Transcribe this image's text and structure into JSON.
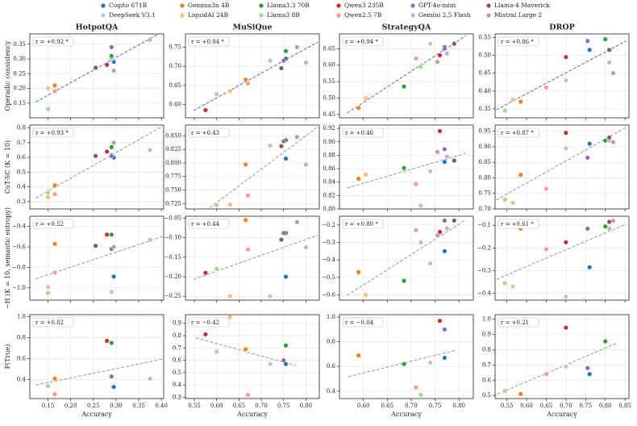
{
  "models": [
    {
      "name": "Cogito 671B",
      "color": "#1f77b4"
    },
    {
      "name": "DeepSeek V3.1",
      "color": "#aec7e8"
    },
    {
      "name": "Gemma3n 4B",
      "color": "#ff7f0e"
    },
    {
      "name": "LiquidAI 24B",
      "color": "#ffbb78"
    },
    {
      "name": "Llama3.3 70B",
      "color": "#2ca02c"
    },
    {
      "name": "Llama3 8B",
      "color": "#98df8a"
    },
    {
      "name": "Qwen3 235B",
      "color": "#d62728"
    },
    {
      "name": "Qwen2.5 7B",
      "color": "#ff9896"
    },
    {
      "name": "GPT-4o-mini",
      "color": "#9467bd"
    },
    {
      "name": "Gemini 2.5 Flash",
      "color": "#c5b0d5"
    },
    {
      "name": "Llama-4 Maverick",
      "color": "#8c564b"
    },
    {
      "name": "Mistral Large 2",
      "color": "#c49c94"
    }
  ],
  "chart_data": [
    {
      "type": "scatter",
      "title": "HotpotQA",
      "ylabel": "Operadic consistency",
      "annotation": "r = +0.92 *",
      "fit_color": "#4c72b0",
      "x": [
        0.295,
        0.29,
        0.165,
        0.15,
        0.29,
        0.15,
        0.28,
        0.165,
        0.29,
        0.375,
        0.255,
        0.295
      ],
      "y": [
        0.29,
        0.3,
        0.21,
        0.2,
        0.31,
        0.13,
        0.28,
        0.19,
        0.34,
        0.365,
        0.27,
        0.26
      ],
      "xlim": [
        0.11,
        0.405
      ],
      "xticks": [
        0.15,
        {
          "value": 0.2,
          "label": "0.20"
        },
        0.25,
        {
          "value": 0.3,
          "label": "0.30"
        },
        0.35,
        {
          "value": 0.4,
          "label": "0.40"
        }
      ],
      "ylim": [
        0.1,
        0.385
      ],
      "yticks": [
        0.15,
        {
          "value": 0.2,
          "label": "0.20"
        },
        0.25,
        {
          "value": 0.3,
          "label": "0.30"
        },
        0.35
      ],
      "grid": true
    },
    {
      "type": "scatter",
      "title": "MuSiQue",
      "annotation": "r = +0.94 *",
      "fit_color": "#4c72b0",
      "x": [
        0.755,
        0.72,
        0.665,
        0.63,
        0.755,
        0.6,
        0.575,
        0.67,
        0.75,
        0.8,
        0.745,
        0.78
      ],
      "y": [
        0.72,
        0.715,
        0.665,
        0.635,
        0.74,
        0.627,
        0.585,
        0.655,
        0.715,
        0.71,
        0.695,
        0.75
      ],
      "xlim": [
        0.53,
        0.83
      ],
      "xticks": [
        0.55,
        {
          "value": 0.6,
          "label": "0.60"
        },
        0.65,
        {
          "value": 0.7,
          "label": "0.70"
        },
        0.75,
        {
          "value": 0.8,
          "label": "0.80"
        }
      ],
      "ylim": [
        0.565,
        0.785
      ],
      "yticks": [
        {
          "value": 0.6,
          "label": "0.60"
        },
        0.65,
        {
          "value": 0.7,
          "label": "0.70"
        },
        0.75
      ],
      "grid": true
    },
    {
      "type": "scatter",
      "title": "StrategyQA",
      "annotation": "r = +0.94 *",
      "fit_color": "#4c72b0",
      "x": [
        0.77,
        0.74,
        0.59,
        0.605,
        0.685,
        0.72,
        0.76,
        0.71,
        0.77,
        0.775,
        0.79,
        0.755
      ],
      "y": [
        0.655,
        0.665,
        0.47,
        0.5,
        0.535,
        0.595,
        0.63,
        0.62,
        0.65,
        0.635,
        0.665,
        0.61
      ],
      "xlim": [
        0.55,
        0.83
      ],
      "xticks": [
        {
          "value": 0.6,
          "label": "0.60"
        },
        0.65,
        {
          "value": 0.7,
          "label": "0.70"
        },
        0.75,
        {
          "value": 0.8,
          "label": "0.80"
        }
      ],
      "ylim": [
        0.44,
        0.695
      ],
      "yticks": [
        0.45,
        {
          "value": 0.5,
          "label": "0.50"
        },
        0.55,
        {
          "value": 0.6,
          "label": "0.60"
        },
        0.65
      ],
      "grid": true
    },
    {
      "type": "scatter",
      "title": "DROP",
      "annotation": "r = +0.86 *",
      "fit_color": "#4c72b0",
      "x": [
        0.76,
        0.7,
        0.585,
        0.565,
        0.8,
        0.545,
        0.7,
        0.65,
        0.755,
        0.81,
        0.81,
        0.82
      ],
      "y": [
        0.515,
        0.43,
        0.37,
        0.375,
        0.545,
        0.345,
        0.495,
        0.41,
        0.54,
        0.48,
        0.515,
        0.45
      ],
      "xlim": [
        0.52,
        0.86
      ],
      "xticks": [
        0.55,
        {
          "value": 0.6,
          "label": "0.60"
        },
        0.65,
        {
          "value": 0.7,
          "label": "0.70"
        },
        0.75,
        {
          "value": 0.8,
          "label": "0.80"
        },
        0.85
      ],
      "ylim": [
        0.325,
        0.56
      ],
      "yticks": [
        0.35,
        {
          "value": 0.4,
          "label": "0.40"
        },
        0.45,
        {
          "value": 0.5,
          "label": "0.50"
        },
        0.55
      ],
      "grid": true
    },
    {
      "type": "scatter",
      "ylabel": "CoT-SC (K = 10)",
      "annotation": "r = +0.93 *",
      "fit_color": "#999999",
      "x": [
        0.295,
        0.29,
        0.165,
        0.15,
        0.29,
        0.15,
        0.28,
        0.165,
        0.29,
        0.375,
        0.255,
        0.295
      ],
      "y": [
        0.6,
        0.62,
        0.41,
        0.33,
        0.67,
        0.36,
        0.64,
        0.35,
        0.61,
        0.65,
        0.61,
        0.7
      ],
      "xlim": [
        0.11,
        0.405
      ],
      "xticks": [
        0.15,
        {
          "value": 0.2,
          "label": "0.20"
        },
        0.25,
        {
          "value": 0.3,
          "label": "0.30"
        },
        0.35,
        {
          "value": 0.4,
          "label": "0.40"
        }
      ],
      "ylim": [
        0.25,
        0.82
      ],
      "yticks": [
        0.3,
        0.4,
        0.5,
        0.6,
        0.7,
        0.8
      ],
      "grid": true
    },
    {
      "type": "scatter",
      "annotation": "r = +0.43",
      "fit_color": "#999999",
      "x": [
        0.755,
        0.72,
        0.665,
        0.63,
        0.755,
        0.6,
        0.575,
        0.67,
        0.75,
        0.8,
        0.745,
        0.78
      ],
      "y": [
        0.808,
        0.832,
        0.797,
        0.723,
        0.842,
        0.722,
        null,
        0.74,
        0.84,
        0.797,
        0.831,
        0.848
      ],
      "xlim": [
        0.53,
        0.83
      ],
      "xticks": [
        0.55,
        {
          "value": 0.6,
          "label": "0.60"
        },
        0.65,
        {
          "value": 0.7,
          "label": "0.70"
        },
        0.75,
        {
          "value": 0.8,
          "label": "0.80"
        }
      ],
      "ylim": [
        0.715,
        0.87
      ],
      "yticks": [
        0.725,
        {
          "value": 0.75,
          "label": "0.750"
        },
        0.775,
        {
          "value": 0.8,
          "label": "0.800"
        },
        0.825,
        {
          "value": 0.85,
          "label": "0.850"
        }
      ],
      "grid": true
    },
    {
      "type": "scatter",
      "annotation": "r = +0.46",
      "fit_color": "#999999",
      "x": [
        0.77,
        0.74,
        0.59,
        0.605,
        0.685,
        0.72,
        0.76,
        0.71,
        0.77,
        0.775,
        0.79,
        0.755
      ],
      "y": [
        0.87,
        0.856,
        0.845,
        0.851,
        0.861,
        0.805,
        0.916,
        0.837,
        0.889,
        0.878,
        0.872,
        0.885
      ],
      "xlim": [
        0.55,
        0.83
      ],
      "xticks": [
        {
          "value": 0.6,
          "label": "0.60"
        },
        0.65,
        {
          "value": 0.7,
          "label": "0.70"
        },
        0.75,
        {
          "value": 0.8,
          "label": "0.80"
        }
      ],
      "ylim": [
        0.8,
        0.925
      ],
      "yticks": [
        {
          "value": 0.8,
          "label": "0.80"
        },
        0.82,
        0.84,
        0.86,
        0.88,
        {
          "value": 0.9,
          "label": "0.90"
        },
        0.92
      ],
      "grid": true
    },
    {
      "type": "scatter",
      "annotation": "r = +0.87 *",
      "fit_color": "#999999",
      "x": [
        0.76,
        0.7,
        0.585,
        0.565,
        0.8,
        0.545,
        0.7,
        0.65,
        0.755,
        0.81,
        0.81,
        0.82
      ],
      "y": [
        0.91,
        0.895,
        0.81,
        0.72,
        0.92,
        0.73,
        0.945,
        0.765,
        0.865,
        0.92,
        0.93,
        0.915
      ],
      "xlim": [
        0.52,
        0.86
      ],
      "xticks": [
        0.55,
        {
          "value": 0.6,
          "label": "0.60"
        },
        0.65,
        {
          "value": 0.7,
          "label": "0.70"
        },
        0.75,
        {
          "value": 0.8,
          "label": "0.80"
        },
        0.85
      ],
      "ylim": [
        0.7,
        0.97
      ],
      "yticks": [
        {
          "value": 0.7,
          "label": "0.70"
        },
        0.75,
        {
          "value": 0.8,
          "label": "0.80"
        },
        0.85,
        {
          "value": 0.9,
          "label": "0.90"
        },
        0.95
      ],
      "grid": true
    },
    {
      "type": "scatter",
      "ylabel": "−H (K = 10, semantic entropy)",
      "annotation": "r = +0.52",
      "fit_color": "#999999",
      "x": [
        0.295,
        0.29,
        0.165,
        0.15,
        0.29,
        0.15,
        0.28,
        0.165,
        0.29,
        0.375,
        0.255,
        0.295
      ],
      "y": [
        -0.89,
        -1.04,
        -0.57,
        -0.99,
        -0.48,
        -1.05,
        -0.48,
        -0.85,
        -0.62,
        -0.53,
        -0.59,
        -0.6
      ],
      "xlim": [
        0.11,
        0.405
      ],
      "xticks": [
        0.15,
        {
          "value": 0.2,
          "label": "0.20"
        },
        0.25,
        {
          "value": 0.3,
          "label": "0.30"
        },
        0.35,
        {
          "value": 0.4,
          "label": "0.40"
        }
      ],
      "ylim": [
        -1.12,
        -0.3
      ],
      "yticks": [
        {
          "value": -1,
          "label": "−1.0"
        },
        {
          "value": -0.8,
          "label": "−0.8"
        },
        {
          "value": -0.6,
          "label": "−0.6"
        },
        {
          "value": -0.4,
          "label": "−0.4"
        }
      ],
      "grid": true
    },
    {
      "type": "scatter",
      "annotation": "r = +0.44",
      "fit_color": "#999999",
      "x": [
        0.755,
        0.72,
        0.665,
        0.63,
        0.755,
        0.6,
        0.575,
        0.67,
        0.75,
        0.8,
        0.745,
        0.78
      ],
      "y": [
        -0.2,
        -0.25,
        -0.055,
        -0.25,
        -0.088,
        -0.18,
        -0.19,
        -0.13,
        -0.088,
        -0.125,
        -0.105,
        -0.06
      ],
      "xlim": [
        0.53,
        0.83
      ],
      "xticks": [
        0.55,
        {
          "value": 0.6,
          "label": "0.60"
        },
        0.65,
        {
          "value": 0.7,
          "label": "0.70"
        },
        0.75,
        {
          "value": 0.8,
          "label": "0.80"
        }
      ],
      "ylim": [
        -0.26,
        -0.045
      ],
      "yticks": [
        {
          "value": -0.25,
          "label": "−0.25"
        },
        {
          "value": -0.2,
          "label": "−0.20"
        },
        {
          "value": -0.15,
          "label": "−0.15"
        },
        {
          "value": -0.1,
          "label": "−0.10"
        },
        {
          "value": -0.05,
          "label": "−0.05"
        }
      ],
      "grid": true
    },
    {
      "type": "scatter",
      "annotation": "r = +0.80 *",
      "fit_color": "#999999",
      "x": [
        0.77,
        0.74,
        0.59,
        0.605,
        0.685,
        0.72,
        0.76,
        0.71,
        0.77,
        0.775,
        0.79,
        0.755
      ],
      "y": [
        -0.35,
        -0.42,
        -0.47,
        -0.6,
        -0.52,
        -0.3,
        -0.24,
        -0.23,
        -0.175,
        -0.22,
        -0.175,
        -0.26
      ],
      "xlim": [
        0.55,
        0.83
      ],
      "xticks": [
        {
          "value": 0.6,
          "label": "0.60"
        },
        0.65,
        {
          "value": 0.7,
          "label": "0.70"
        },
        0.75,
        {
          "value": 0.8,
          "label": "0.80"
        }
      ],
      "ylim": [
        -0.63,
        -0.15
      ],
      "yticks": [
        {
          "value": -0.6,
          "label": "−0.6"
        },
        {
          "value": -0.5,
          "label": "−0.5"
        },
        {
          "value": -0.4,
          "label": "−0.4"
        },
        {
          "value": -0.3,
          "label": "−0.3"
        },
        {
          "value": -0.2,
          "label": "−0.2"
        }
      ],
      "grid": true
    },
    {
      "type": "scatter",
      "annotation": "r = +0.61 *",
      "fit_color": "#999999",
      "x": [
        0.76,
        0.7,
        0.585,
        0.565,
        0.8,
        0.545,
        0.7,
        0.65,
        0.755,
        0.81,
        0.81,
        0.82
      ],
      "y": [
        -0.285,
        -0.415,
        -0.115,
        -0.37,
        -0.105,
        -0.355,
        -0.175,
        -0.205,
        -0.115,
        -0.115,
        -0.085,
        -0.08
      ],
      "xlim": [
        0.52,
        0.86
      ],
      "xticks": [
        0.55,
        {
          "value": 0.6,
          "label": "0.60"
        },
        0.65,
        {
          "value": 0.7,
          "label": "0.70"
        },
        0.75,
        {
          "value": 0.8,
          "label": "0.80"
        },
        0.85
      ],
      "ylim": [
        -0.43,
        -0.06
      ],
      "yticks": [
        {
          "value": -0.4,
          "label": "−0.4"
        },
        {
          "value": -0.3,
          "label": "−0.3"
        },
        {
          "value": -0.2,
          "label": "−0.2"
        },
        {
          "value": -0.1,
          "label": "−0.1"
        }
      ],
      "grid": true
    },
    {
      "type": "scatter",
      "ylabel": "P(True)",
      "xlabel": "Accuracy",
      "annotation": "r = +0.02",
      "fit_color": "#999999",
      "x": [
        0.295,
        0.29,
        0.165,
        0.15,
        0.29,
        0.15,
        0.28,
        0.165,
        0.29,
        0.375,
        0.255,
        0.295
      ],
      "y": [
        0.33,
        null,
        0.41,
        null,
        0.75,
        0.34,
        0.77,
        0.26,
        0.43,
        0.41,
        null,
        null
      ],
      "xlim": [
        0.11,
        0.405
      ],
      "xticks": [
        0.15,
        {
          "value": 0.2,
          "label": "0.20"
        },
        0.25,
        {
          "value": 0.3,
          "label": "0.30"
        },
        0.35,
        {
          "value": 0.4,
          "label": "0.40"
        }
      ],
      "ylim": [
        0.22,
        1.02
      ],
      "yticks": [
        0.4,
        0.6,
        0.8,
        {
          "value": 1,
          "label": "1.0"
        }
      ],
      "grid": true
    },
    {
      "type": "scatter",
      "xlabel": "Accuracy",
      "annotation": "r = −0.42",
      "fit_color": "#999999",
      "x": [
        0.755,
        0.72,
        0.665,
        0.63,
        0.755,
        0.6,
        0.575,
        0.67,
        0.75,
        0.8,
        0.745,
        0.78
      ],
      "y": [
        0.57,
        0.57,
        0.69,
        0.95,
        0.72,
        0.67,
        0.81,
        0.32,
        0.6,
        null,
        null,
        null
      ],
      "xlim": [
        0.53,
        0.83
      ],
      "xticks": [
        0.55,
        {
          "value": 0.6,
          "label": "0.60"
        },
        0.65,
        {
          "value": 0.7,
          "label": "0.70"
        },
        0.75,
        {
          "value": 0.8,
          "label": "0.80"
        }
      ],
      "ylim": [
        0.29,
        0.97
      ],
      "yticks": [
        0.3,
        0.4,
        0.5,
        0.6,
        0.7,
        0.8,
        0.9
      ],
      "grid": true
    },
    {
      "type": "scatter",
      "xlabel": "Accuracy",
      "annotation": "r = −0.04",
      "fit_color": "#999999",
      "x": [
        0.77,
        0.74,
        0.59,
        0.605,
        0.685,
        0.72,
        0.76,
        0.71,
        0.77,
        0.775,
        0.79,
        0.755
      ],
      "y": [
        0.67,
        0.63,
        0.69,
        null,
        0.62,
        0.37,
        0.97,
        0.43,
        0.9,
        null,
        null,
        null
      ],
      "xlim": [
        0.55,
        0.83
      ],
      "xticks": [
        {
          "value": 0.6,
          "label": "0.60"
        },
        0.65,
        {
          "value": 0.7,
          "label": "0.70"
        },
        0.75,
        {
          "value": 0.8,
          "label": "0.80"
        }
      ],
      "ylim": [
        0.34,
        1.02
      ],
      "yticks": [
        0.4,
        0.6,
        0.8,
        {
          "value": 1,
          "label": "1.0"
        }
      ],
      "grid": true
    },
    {
      "type": "scatter",
      "xlabel": "Accuracy",
      "annotation": "r = +0.21",
      "fit_color": "#999999",
      "x": [
        0.76,
        0.7,
        0.585,
        0.565,
        0.8,
        0.545,
        0.7,
        0.65,
        0.755,
        0.81,
        0.81,
        0.82
      ],
      "y": [
        0.64,
        0.69,
        0.51,
        null,
        0.855,
        0.53,
        0.945,
        0.64,
        0.68,
        null,
        null,
        null
      ],
      "xlim": [
        0.52,
        0.86
      ],
      "xticks": [
        0.55,
        {
          "value": 0.6,
          "label": "0.60"
        },
        0.65,
        {
          "value": 0.7,
          "label": "0.70"
        },
        0.75,
        {
          "value": 0.8,
          "label": "0.80"
        },
        0.85
      ],
      "ylim": [
        0.48,
        1.03
      ],
      "yticks": [
        0.5,
        0.6,
        0.7,
        0.8,
        0.9,
        {
          "value": 1,
          "label": "1.0"
        }
      ],
      "grid": true
    }
  ]
}
